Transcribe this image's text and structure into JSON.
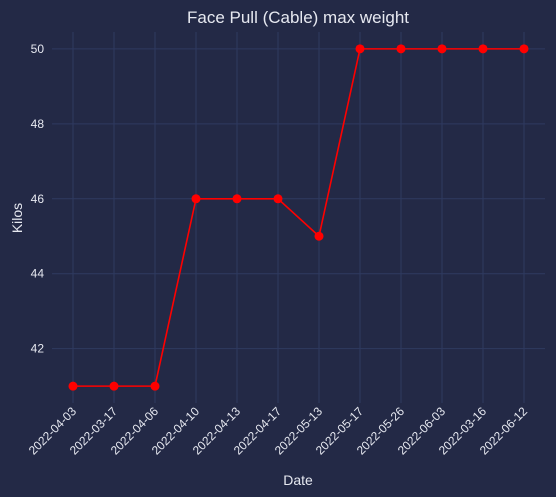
{
  "chart_data": {
    "type": "line",
    "title": "Face Pull (Cable) max weight",
    "xlabel": "Date",
    "ylabel": "Kilos",
    "categories": [
      "2022-04-03",
      "2022-03-17",
      "2022-04-06",
      "2022-04-10",
      "2022-04-13",
      "2022-04-17",
      "2022-05-13",
      "2022-05-17",
      "2022-05-26",
      "2022-06-03",
      "2022-03-16",
      "2022-06-12"
    ],
    "series": [
      {
        "values": [
          41,
          41,
          41,
          46,
          46,
          46,
          45,
          50,
          50,
          50,
          50,
          50
        ],
        "color": "#ff0000",
        "marker": "circle"
      }
    ],
    "ylim": [
      40.55,
      50.45
    ],
    "yticks": [
      42,
      44,
      46,
      48,
      50
    ],
    "grid": true,
    "legend": "none",
    "colors": {
      "background": "#232946",
      "grid": "#2f3a60",
      "text": "#e6e8f0",
      "line": "#ff0000"
    }
  }
}
